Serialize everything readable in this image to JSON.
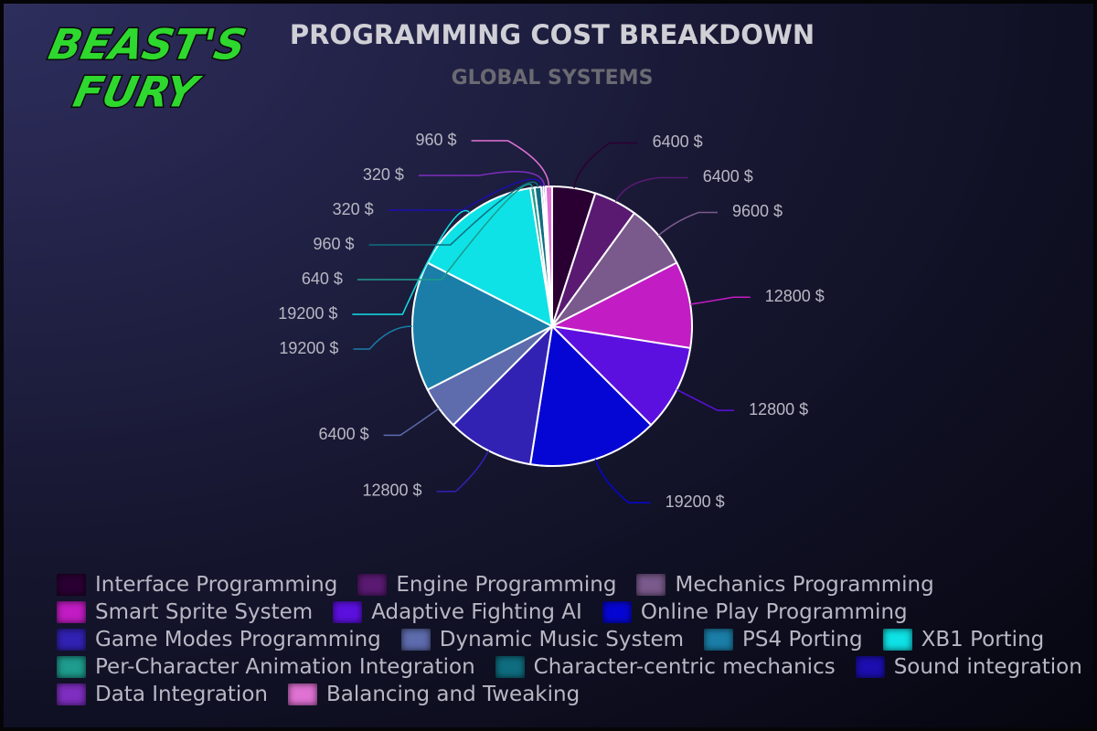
{
  "logo": [
    "BEAST'S",
    "FURY"
  ],
  "chart_data": {
    "type": "pie",
    "title": "PROGRAMMING COST BREAKDOWN",
    "subtitle": "GLOBAL SYSTEMS",
    "categories": [
      "Interface Programming",
      "Engine Programming",
      "Mechanics Programming",
      "Smart Sprite System",
      "Adaptive Fighting AI",
      "Online Play Programming",
      "Game Modes Programming",
      "Dynamic Music System",
      "PS4 Porting",
      "XB1 Porting",
      "Per-Character Animation Integration",
      "Character-centric mechanics",
      "Sound integration",
      "Data Integration",
      "Balancing and Tweaking"
    ],
    "values": [
      6400,
      6400,
      9600,
      12800,
      12800,
      19200,
      12800,
      6400,
      19200,
      19200,
      640,
      960,
      320,
      320,
      960
    ],
    "value_labels": [
      "6400 $",
      "6400 $",
      "9600 $",
      "12800 $",
      "12800 $",
      "19200 $",
      "12800 $",
      "6400 $",
      "19200 $",
      "19200 $",
      "640 $",
      "960 $",
      "320 $",
      "320 $",
      "960 $"
    ],
    "colors": [
      "#2a0033",
      "#5a1a72",
      "#7a5a8c",
      "#c21cc4",
      "#5c10e0",
      "#0606d4",
      "#3222b4",
      "#5e6cae",
      "#1a7ea8",
      "#0ee2e6",
      "#1e9c8e",
      "#0e6e80",
      "#1c0eb0",
      "#7e2ec0",
      "#e072d4"
    ],
    "legend": true
  }
}
